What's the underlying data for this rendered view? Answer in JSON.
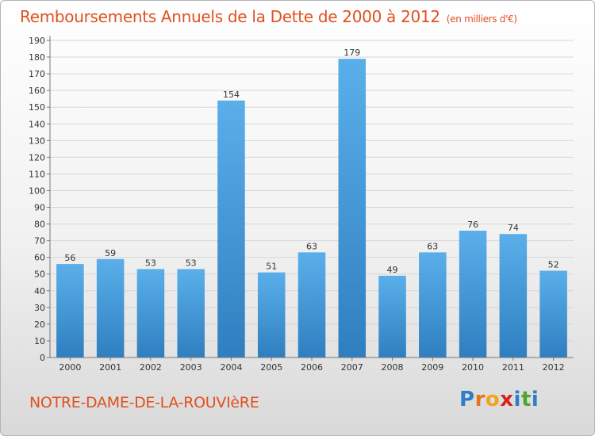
{
  "header": {
    "title": "Remboursements Annuels de la Dette de 2000 à 2012",
    "subtitle": "(en milliers d'€)"
  },
  "footer": {
    "commune": "NOTRE-DAME-DE-LA-ROUVIèRE",
    "logo_letters": [
      "P",
      "r",
      "o",
      "x",
      "i",
      "t",
      "i"
    ],
    "logo_colors": [
      "#2f7fc7",
      "#e8731c",
      "#f0a51a",
      "#d4231f",
      "#2f7fc7",
      "#4ea535",
      "#2f7fc7"
    ]
  },
  "colors": {
    "title": "#e0511f",
    "bar_top": "#5aafea",
    "bar_bottom": "#2f7fc0",
    "grid": "#d6d6d6",
    "axis": "#777777"
  },
  "chart_data": {
    "type": "bar",
    "title": "Remboursements Annuels de la Dette de 2000 à 2012",
    "subtitle": "(en milliers d'€)",
    "categories": [
      "2000",
      "2001",
      "2002",
      "2003",
      "2004",
      "2005",
      "2006",
      "2007",
      "2008",
      "2009",
      "2010",
      "2011",
      "2012"
    ],
    "values": [
      56,
      59,
      53,
      53,
      154,
      51,
      63,
      179,
      49,
      63,
      76,
      74,
      52
    ],
    "ylim": [
      0,
      190
    ],
    "ytick_step": 10,
    "grid": true,
    "data_labels": true,
    "legend": "none"
  }
}
